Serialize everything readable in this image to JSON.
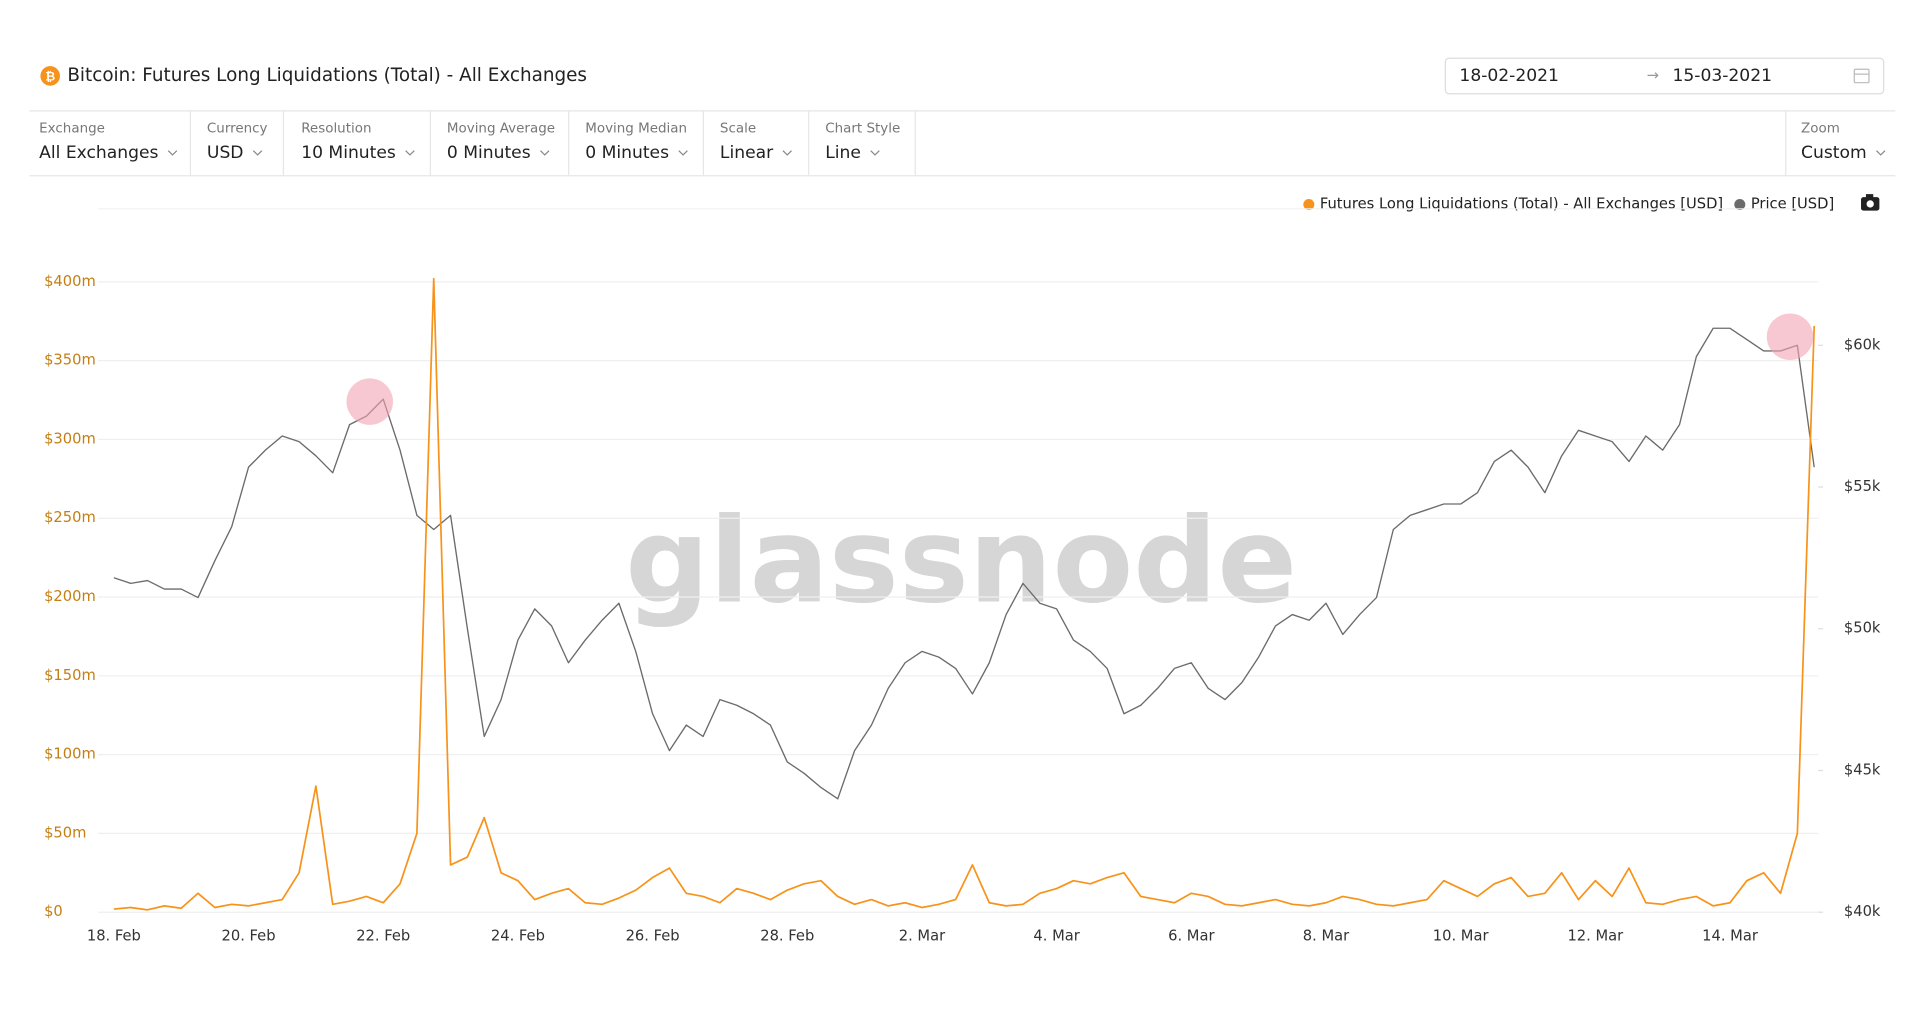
{
  "header": {
    "title": "Bitcoin: Futures Long Liquidations (Total) - All Exchanges",
    "date_from": "18-02-2021",
    "date_to": "15-03-2021"
  },
  "controls": [
    {
      "label": "Exchange",
      "value": "All Exchanges"
    },
    {
      "label": "Currency",
      "value": "USD"
    },
    {
      "label": "Resolution",
      "value": "10 Minutes"
    },
    {
      "label": "Moving Average",
      "value": "0 Minutes"
    },
    {
      "label": "Moving Median",
      "value": "0 Minutes"
    },
    {
      "label": "Scale",
      "value": "Linear"
    },
    {
      "label": "Chart Style",
      "value": "Line"
    },
    {
      "label": "Zoom",
      "value": "Custom"
    }
  ],
  "watermark": "glassnode",
  "chart_data": {
    "type": "line",
    "categories": [
      "18. Feb",
      null,
      null,
      null,
      null,
      null,
      null,
      null,
      "20. Feb",
      null,
      null,
      null,
      null,
      null,
      null,
      null,
      "22. Feb",
      null,
      null,
      null,
      null,
      null,
      null,
      null,
      "24. Feb",
      null,
      null,
      null,
      null,
      null,
      null,
      null,
      "26. Feb",
      null,
      null,
      null,
      null,
      null,
      null,
      null,
      "28. Feb",
      null,
      null,
      null,
      null,
      null,
      null,
      null,
      "2. Mar",
      null,
      null,
      null,
      null,
      null,
      null,
      null,
      "4. Mar",
      null,
      null,
      null,
      null,
      null,
      null,
      null,
      "6. Mar",
      null,
      null,
      null,
      null,
      null,
      null,
      null,
      "8. Mar",
      null,
      null,
      null,
      null,
      null,
      null,
      null,
      "10. Mar",
      null,
      null,
      null,
      null,
      null,
      null,
      null,
      "12. Mar",
      null,
      null,
      null,
      null,
      null,
      null,
      null,
      "14. Mar",
      null,
      null,
      null,
      null,
      null
    ],
    "series": [
      {
        "name": "Futures Long Liquidations (Total) - All Exchanges [USD]",
        "color": "#f7931a",
        "axis": "y",
        "values": [
          2000000,
          3000000,
          1500000,
          4000000,
          2500000,
          12000000,
          3000000,
          5000000,
          4000000,
          6000000,
          8000000,
          25000000,
          80000000,
          5000000,
          7000000,
          10000000,
          6000000,
          18000000,
          50000000,
          402000000,
          30000000,
          35000000,
          60000000,
          25000000,
          20000000,
          8000000,
          12000000,
          15000000,
          6000000,
          5000000,
          9000000,
          14000000,
          22000000,
          28000000,
          12000000,
          10000000,
          6000000,
          15000000,
          12000000,
          8000000,
          14000000,
          18000000,
          20000000,
          10000000,
          5000000,
          8000000,
          4000000,
          6000000,
          3000000,
          5000000,
          8000000,
          30000000,
          6000000,
          4000000,
          5000000,
          12000000,
          15000000,
          20000000,
          18000000,
          22000000,
          25000000,
          10000000,
          8000000,
          6000000,
          12000000,
          10000000,
          5000000,
          4000000,
          6000000,
          8000000,
          5000000,
          4000000,
          6000000,
          10000000,
          8000000,
          5000000,
          4000000,
          6000000,
          8000000,
          20000000,
          15000000,
          10000000,
          18000000,
          22000000,
          10000000,
          12000000,
          25000000,
          8000000,
          20000000,
          10000000,
          28000000,
          6000000,
          5000000,
          8000000,
          10000000,
          4000000,
          6000000,
          20000000,
          25000000,
          12000000,
          50000000,
          372000000
        ]
      },
      {
        "name": "Price [USD]",
        "color": "#6b6b6b",
        "axis": "y2",
        "values": [
          51800,
          51600,
          51700,
          51400,
          51400,
          51100,
          52400,
          53600,
          55700,
          56300,
          56800,
          56600,
          56100,
          55500,
          57200,
          57500,
          58100,
          56300,
          54000,
          53500,
          54000,
          50000,
          46200,
          47500,
          49600,
          50700,
          50100,
          48800,
          49600,
          50300,
          50900,
          49200,
          47000,
          45700,
          46600,
          46200,
          47500,
          47300,
          47000,
          46600,
          45300,
          44900,
          44400,
          44000,
          45700,
          46600,
          47900,
          48800,
          49200,
          49000,
          48600,
          47700,
          48800,
          50500,
          51600,
          50900,
          50700,
          49600,
          49200,
          48600,
          47000,
          47300,
          47900,
          48600,
          48800,
          47900,
          47500,
          48100,
          49000,
          50100,
          50500,
          50300,
          50900,
          49800,
          50500,
          51100,
          53500,
          54000,
          54200,
          54400,
          54400,
          54800,
          55900,
          56300,
          55700,
          54800,
          56100,
          57000,
          56800,
          56600,
          55900,
          56800,
          56300,
          57200,
          59600,
          60600,
          60600,
          60200,
          59800,
          59800,
          60000,
          55700
        ]
      }
    ],
    "ylim": [
      0,
      404000000
    ],
    "yticks": [
      {
        "value": 0,
        "label": "$0"
      },
      {
        "value": 50000000,
        "label": "$50m"
      },
      {
        "value": 100000000,
        "label": "$100m"
      },
      {
        "value": 150000000,
        "label": "$150m"
      },
      {
        "value": 200000000,
        "label": "$200m"
      },
      {
        "value": 250000000,
        "label": "$250m"
      },
      {
        "value": 300000000,
        "label": "$300m"
      },
      {
        "value": 350000000,
        "label": "$350m"
      },
      {
        "value": 400000000,
        "label": "$400m"
      }
    ],
    "y2lim": [
      40000,
      62460
    ],
    "y2ticks": [
      {
        "value": 40000,
        "label": "$40k"
      },
      {
        "value": 45000,
        "label": "$45k"
      },
      {
        "value": 50000,
        "label": "$50k"
      },
      {
        "value": 55000,
        "label": "$55k"
      },
      {
        "value": 60000,
        "label": "$60k"
      }
    ],
    "grid": true
  }
}
